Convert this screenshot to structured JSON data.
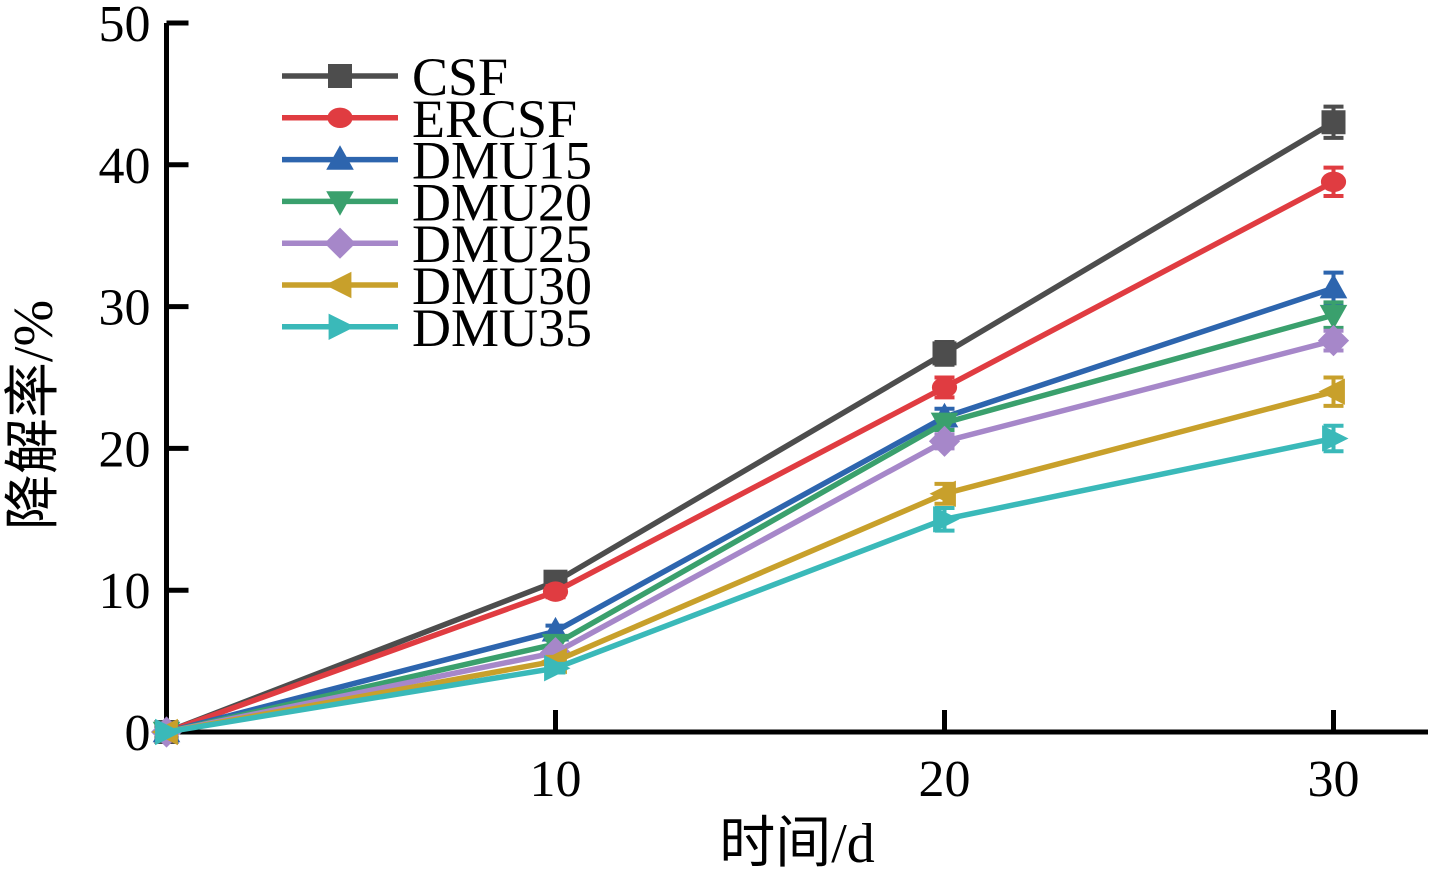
{
  "chart_data": {
    "type": "line",
    "title": "",
    "xlabel": "时间/d",
    "ylabel": "降解率/%",
    "x": [
      0,
      10,
      20,
      30
    ],
    "xlim": [
      0,
      32.5
    ],
    "ylim": [
      0,
      50
    ],
    "x_ticks": [
      10,
      20,
      30
    ],
    "y_ticks": [
      0,
      10,
      20,
      30,
      40,
      50
    ],
    "grid": false,
    "error_bars": true,
    "legend_position": "upper-left",
    "axis_color": "#000000",
    "series": [
      {
        "name": "CSF",
        "color": "#4d4d4d",
        "marker": "square",
        "values": [
          0,
          10.6,
          26.7,
          43.0
        ],
        "errors": [
          0,
          0.5,
          0.8,
          1.1
        ]
      },
      {
        "name": "ERCSF",
        "color": "#e03c41",
        "marker": "circle",
        "values": [
          0,
          9.9,
          24.3,
          38.8
        ],
        "errors": [
          0,
          0.4,
          0.7,
          1.0
        ]
      },
      {
        "name": "DMU15",
        "color": "#2d65ae",
        "marker": "triangle-up",
        "values": [
          0,
          7.1,
          22.2,
          31.3
        ],
        "errors": [
          0,
          0.4,
          0.6,
          1.1
        ]
      },
      {
        "name": "DMU20",
        "color": "#3aa06d",
        "marker": "triangle-down",
        "values": [
          0,
          6.2,
          21.8,
          29.4
        ],
        "errors": [
          0,
          0.3,
          0.5,
          0.9
        ]
      },
      {
        "name": "DMU25",
        "color": "#a687c9",
        "marker": "diamond",
        "values": [
          0,
          5.6,
          20.5,
          27.6
        ],
        "errors": [
          0,
          0.3,
          0.5,
          0.7
        ]
      },
      {
        "name": "DMU30",
        "color": "#c8a02b",
        "marker": "triangle-left",
        "values": [
          0,
          5.0,
          16.8,
          24.0
        ],
        "errors": [
          0,
          0.3,
          0.7,
          1.0
        ]
      },
      {
        "name": "DMU35",
        "color": "#3ab9b9",
        "marker": "triangle-right",
        "values": [
          0,
          4.5,
          15.0,
          20.7
        ],
        "errors": [
          0,
          0.3,
          0.8,
          0.9
        ]
      }
    ]
  }
}
